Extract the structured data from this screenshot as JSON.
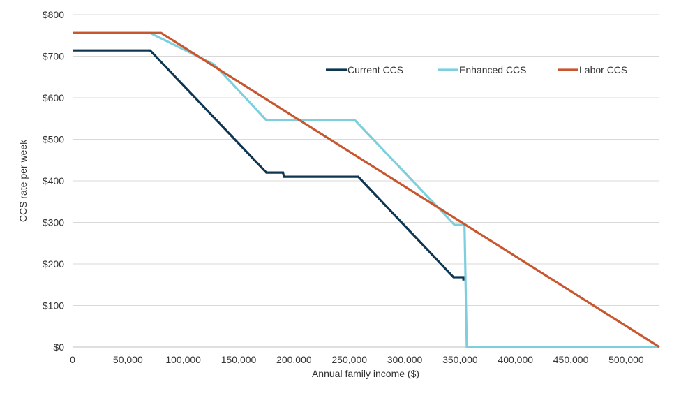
{
  "chart_data": {
    "type": "line",
    "title": "",
    "xlabel": "Annual family income ($)",
    "ylabel": "CCS rate per week",
    "xlim": [
      0,
      530000
    ],
    "ylim": [
      0,
      800
    ],
    "x_ticks": [
      0,
      50000,
      100000,
      150000,
      200000,
      250000,
      300000,
      350000,
      400000,
      450000,
      500000
    ],
    "x_tick_labels": [
      "0",
      "50,000",
      "100,000",
      "150,000",
      "200,000",
      "250,000",
      "300,000",
      "350,000",
      "400,000",
      "450,000",
      "500,000"
    ],
    "y_ticks": [
      0,
      100,
      200,
      300,
      400,
      500,
      600,
      700,
      800
    ],
    "y_tick_labels": [
      "$0",
      "$100",
      "$200",
      "$300",
      "$400",
      "$500",
      "$600",
      "$700",
      "$800"
    ],
    "grid": "horizontal",
    "legend_position": "top-right",
    "series": [
      {
        "name": "Current CCS",
        "color": "#0e3651",
        "points": [
          [
            0,
            714
          ],
          [
            70000,
            714
          ],
          [
            175000,
            420
          ],
          [
            190000,
            420
          ],
          [
            191000,
            410
          ],
          [
            258000,
            410
          ],
          [
            344000,
            168
          ],
          [
            353000,
            168
          ],
          [
            353000,
            160
          ]
        ]
      },
      {
        "name": "Enhanced CCS",
        "color": "#7ecfdd",
        "points": [
          [
            0,
            756
          ],
          [
            70000,
            756
          ],
          [
            128000,
            680
          ],
          [
            175000,
            546
          ],
          [
            255000,
            546
          ],
          [
            345000,
            294
          ],
          [
            354000,
            294
          ],
          [
            356000,
            0
          ],
          [
            530000,
            0
          ]
        ]
      },
      {
        "name": "Labor CCS",
        "color": "#c8562e",
        "points": [
          [
            0,
            756
          ],
          [
            80000,
            756
          ],
          [
            530000,
            0
          ]
        ]
      }
    ]
  }
}
